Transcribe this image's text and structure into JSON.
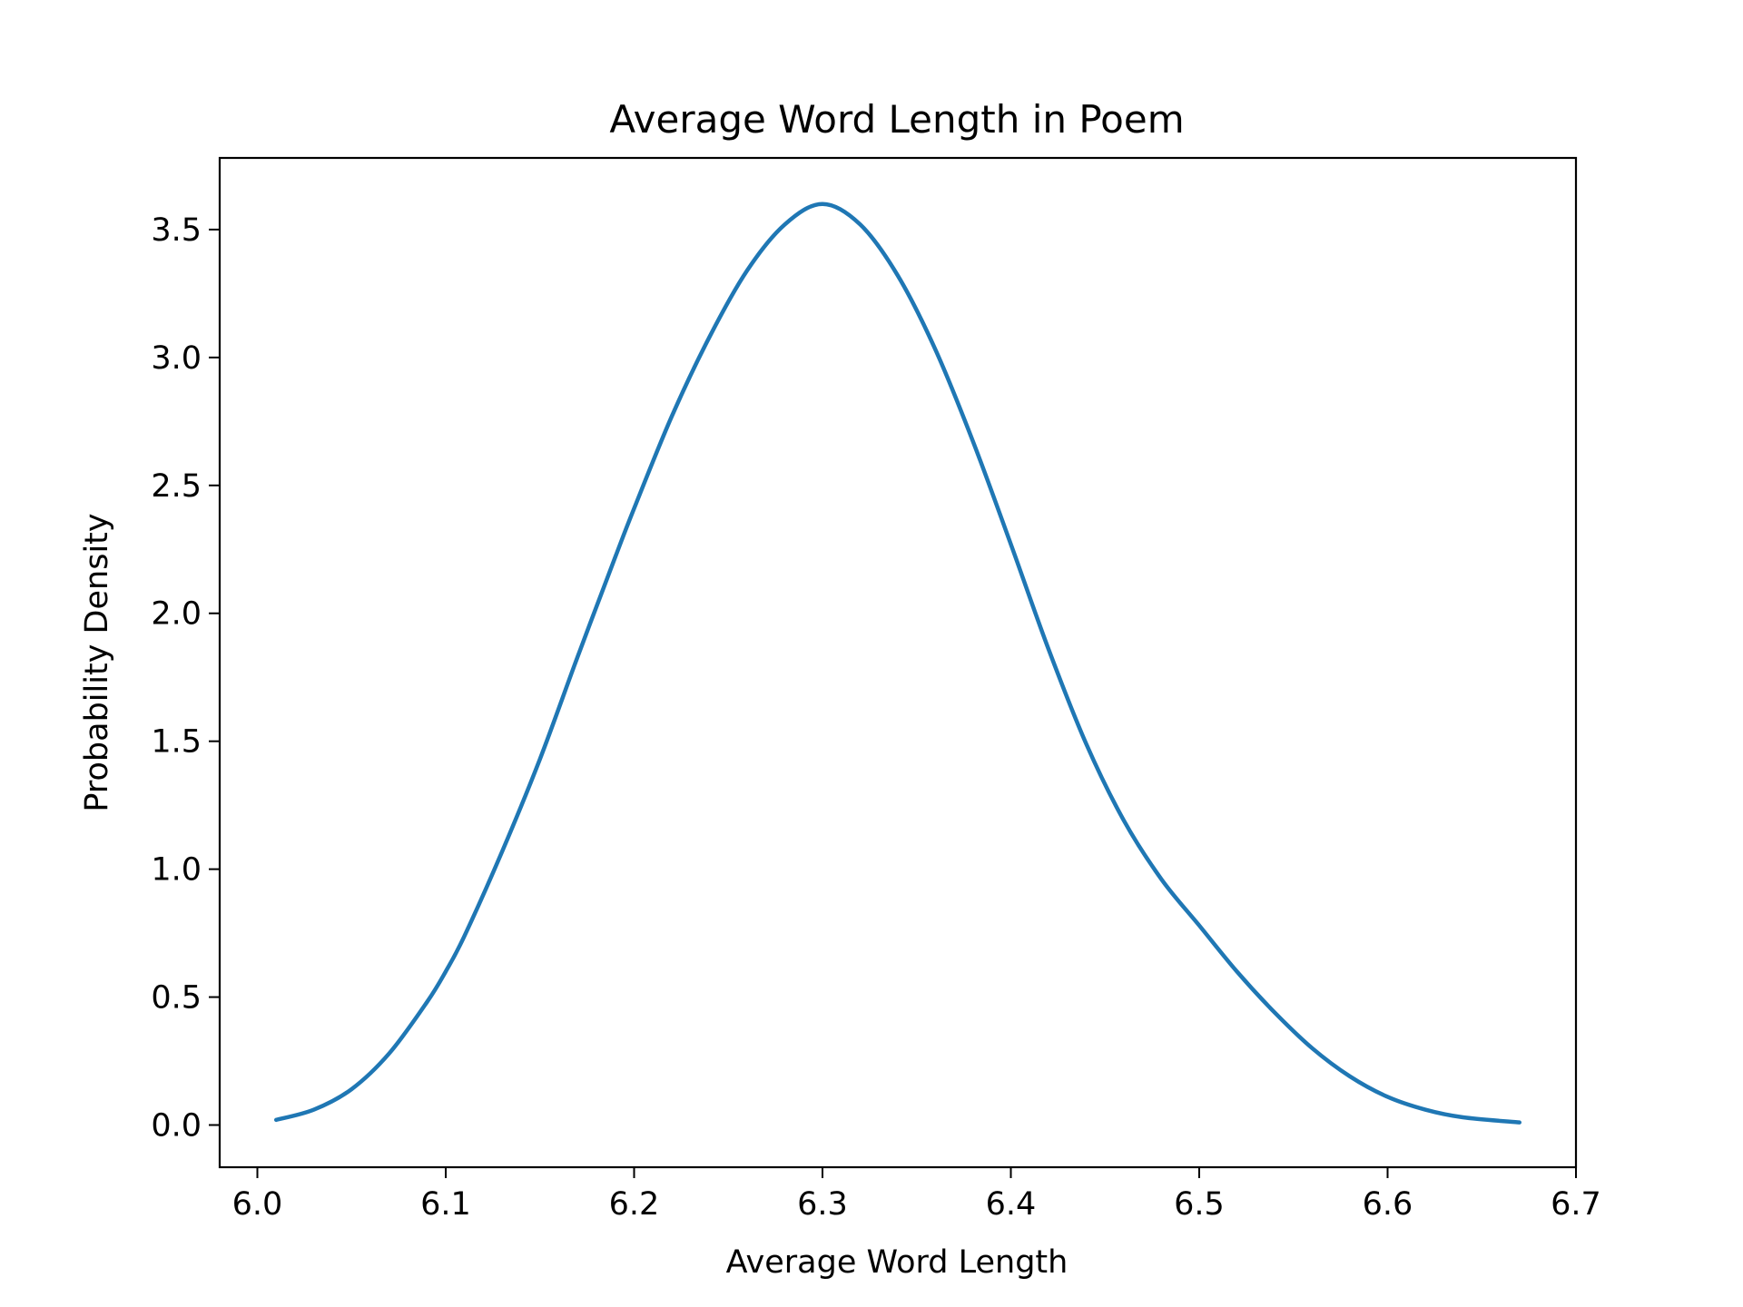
{
  "chart_data": {
    "type": "line",
    "title": "Average Word Length in Poem",
    "xlabel": "Average Word Length",
    "ylabel": "Probability Density",
    "xlim": [
      5.98,
      6.7
    ],
    "ylim": [
      -0.165,
      3.78
    ],
    "xticks": [
      "6.0",
      "6.1",
      "6.2",
      "6.3",
      "6.4",
      "6.5",
      "6.6",
      "6.7"
    ],
    "yticks": [
      "0.0",
      "0.5",
      "1.0",
      "1.5",
      "2.0",
      "2.5",
      "3.0",
      "3.5"
    ],
    "grid": false,
    "line_color": "#1f77b4",
    "series": [
      {
        "x": [
          6.01,
          6.03,
          6.05,
          6.07,
          6.09,
          6.1,
          6.11,
          6.13,
          6.15,
          6.17,
          6.19,
          6.2,
          6.22,
          6.24,
          6.26,
          6.28,
          6.3,
          6.32,
          6.34,
          6.36,
          6.38,
          6.4,
          6.42,
          6.44,
          6.46,
          6.48,
          6.5,
          6.52,
          6.54,
          6.56,
          6.58,
          6.6,
          6.62,
          6.64,
          6.67
        ],
        "y": [
          0.02,
          0.06,
          0.14,
          0.28,
          0.48,
          0.6,
          0.74,
          1.07,
          1.43,
          1.83,
          2.22,
          2.41,
          2.77,
          3.08,
          3.34,
          3.52,
          3.6,
          3.52,
          3.32,
          3.03,
          2.67,
          2.27,
          1.86,
          1.49,
          1.19,
          0.96,
          0.78,
          0.6,
          0.44,
          0.3,
          0.19,
          0.11,
          0.06,
          0.03,
          0.01
        ]
      }
    ]
  }
}
